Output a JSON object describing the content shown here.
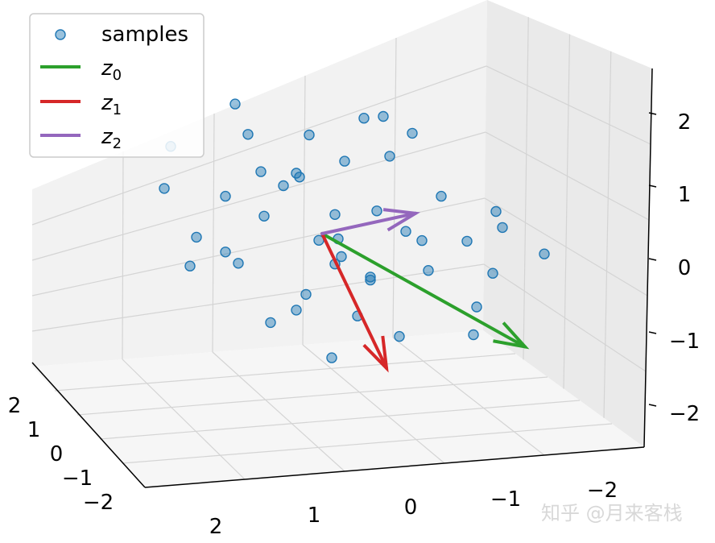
{
  "chart_data": {
    "type": "scatter",
    "projection": "3d",
    "grid": true,
    "legend_position": "top-left",
    "xlim": [
      -2,
      2
    ],
    "ylim": [
      -2,
      2
    ],
    "zlim": [
      -2.5,
      2.5
    ],
    "x_ticks": [
      "2",
      "1",
      "0",
      "−1",
      "−2"
    ],
    "y_ticks": [
      "2",
      "1",
      "0",
      "−1",
      "−2"
    ],
    "z_ticks": [
      "2",
      "1",
      "0",
      "−1",
      "−2"
    ],
    "series": [
      {
        "name": "samples",
        "kind": "scatter",
        "color": "#1f77b4",
        "points": [
          [
            -0.8,
            1.6,
            0.6
          ],
          [
            -1.2,
            1.9,
            0.3
          ],
          [
            -0.4,
            1.1,
            0.9
          ],
          [
            0.3,
            0.6,
            -0.4
          ],
          [
            0.9,
            -0.3,
            0.2
          ],
          [
            -1.5,
            0.2,
            1.1
          ],
          [
            1.4,
            -0.9,
            -0.7
          ],
          [
            0.1,
            0.2,
            0.0
          ],
          [
            -0.3,
            -0.5,
            0.5
          ],
          [
            0.6,
            1.0,
            -1.1
          ],
          [
            -0.9,
            -1.2,
            1.4
          ],
          [
            1.1,
            0.5,
            -0.2
          ],
          [
            -0.2,
            0.8,
            0.3
          ],
          [
            0.5,
            -1.4,
            0.8
          ],
          [
            -1.8,
            0.9,
            0.1
          ],
          [
            1.7,
            0.3,
            -0.9
          ],
          [
            0.2,
            -0.7,
            1.2
          ],
          [
            -0.6,
            0.3,
            -0.6
          ],
          [
            0.8,
            1.3,
            0.4
          ],
          [
            -1.1,
            -0.4,
            -0.3
          ],
          [
            0.0,
            1.6,
            -0.5
          ],
          [
            1.3,
            -0.2,
            0.9
          ],
          [
            -0.4,
            -1.0,
            -0.8
          ],
          [
            0.7,
            0.1,
            1.5
          ],
          [
            -1.4,
            1.3,
            -0.2
          ],
          [
            0.4,
            -0.4,
            -1.4
          ],
          [
            -0.1,
            0.4,
            1.8
          ],
          [
            1.0,
            0.9,
            0.7
          ],
          [
            -0.7,
            -0.1,
            0.2
          ],
          [
            0.3,
            1.9,
            1.0
          ],
          [
            -1.6,
            -0.8,
            0.5
          ],
          [
            1.5,
            0.7,
            0.0
          ],
          [
            0.6,
            -1.1,
            -0.4
          ],
          [
            -0.5,
            1.4,
            -1.0
          ],
          [
            0.9,
            0.4,
            -1.6
          ],
          [
            -0.2,
            -0.3,
            0.7
          ],
          [
            -1.0,
            0.6,
            1.6
          ],
          [
            1.2,
            -0.6,
            0.4
          ],
          [
            0.1,
            -1.6,
            0.1
          ],
          [
            -0.8,
            0.1,
            -1.2
          ],
          [
            0.5,
            0.8,
            2.0
          ],
          [
            -1.3,
            -0.2,
            0.9
          ],
          [
            1.8,
            -0.4,
            -0.3
          ],
          [
            -0.3,
            1.0,
            -0.2
          ],
          [
            0.2,
            -0.1,
            -0.9
          ]
        ]
      },
      {
        "name": "z",
        "subscript": "0",
        "kind": "arrow",
        "color": "#2ca02c",
        "vector": [
          0.0,
          2.1,
          -0.9
        ]
      },
      {
        "name": "z",
        "subscript": "1",
        "kind": "arrow",
        "color": "#d62728",
        "vector": [
          -1.1,
          0.3,
          -1.9
        ]
      },
      {
        "name": "z",
        "subscript": "2",
        "kind": "arrow",
        "color": "#9467bd",
        "vector": [
          0.4,
          1.1,
          0.7
        ]
      }
    ]
  },
  "watermark": "知乎 @月来客栈"
}
